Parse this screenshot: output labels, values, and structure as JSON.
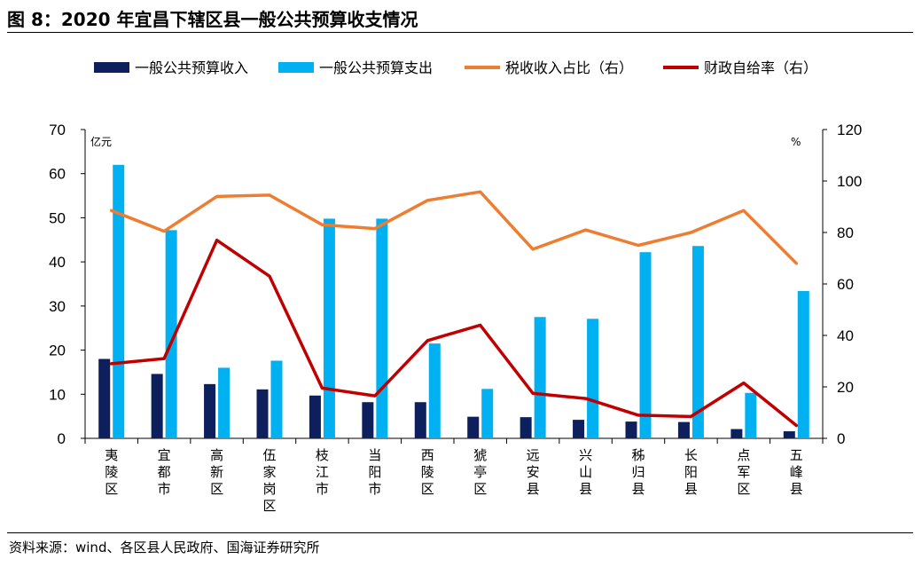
{
  "figure": {
    "title": "图 8：2020 年宜昌下辖区县一般公共预算收支情况",
    "source": "资料来源：wind、各区县人民政府、国海证券研究所"
  },
  "chart_data": {
    "type": "bar",
    "categories": [
      "夷陵区",
      "宜都市",
      "高新区",
      "伍家岗区",
      "枝江市",
      "当阳市",
      "西陵区",
      "猇亭区",
      "远安县",
      "兴山县",
      "秭归县",
      "长阳县",
      "点军区",
      "五峰县"
    ],
    "left_axis": {
      "unit": "亿元",
      "ylim": [
        0,
        70
      ],
      "ticks": [
        0,
        10,
        20,
        30,
        40,
        50,
        60,
        70
      ]
    },
    "right_axis": {
      "unit": "%",
      "ylim": [
        0,
        120
      ],
      "ticks": [
        0,
        20,
        40,
        60,
        80,
        100,
        120
      ]
    },
    "legend_position": "top",
    "grid": false,
    "series": [
      {
        "name": "一般公共预算收入",
        "type": "bar",
        "axis": "left",
        "color": "#0d1f5c",
        "values": [
          18.0,
          14.6,
          12.3,
          11.1,
          9.7,
          8.2,
          8.2,
          4.9,
          4.8,
          4.2,
          3.8,
          3.7,
          2.1,
          1.6
        ]
      },
      {
        "name": "一般公共预算支出",
        "type": "bar",
        "axis": "left",
        "color": "#00b0f0",
        "values": [
          62.0,
          47.2,
          16.0,
          17.6,
          49.8,
          49.8,
          21.5,
          11.2,
          27.5,
          27.1,
          42.2,
          43.6,
          10.3,
          33.4
        ]
      },
      {
        "name": "税收收入占比（右）",
        "type": "line",
        "axis": "right",
        "color": "#ed7d31",
        "values": [
          88.5,
          80.5,
          94.0,
          94.5,
          83.0,
          81.5,
          92.5,
          95.8,
          73.5,
          81.0,
          75.0,
          80.0,
          88.5,
          68.0
        ]
      },
      {
        "name": "财政自给率（右）",
        "type": "line",
        "axis": "right",
        "color": "#c00000",
        "values": [
          29.0,
          31.0,
          77.0,
          63.0,
          19.5,
          16.5,
          38.0,
          44.0,
          17.5,
          15.5,
          9.0,
          8.5,
          21.5,
          5.0
        ]
      }
    ]
  }
}
